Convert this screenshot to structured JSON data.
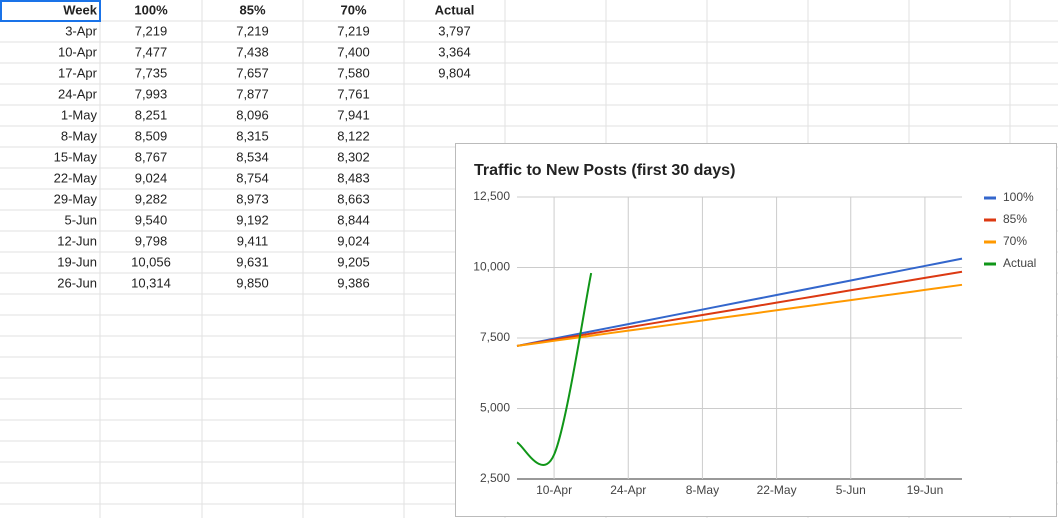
{
  "table": {
    "header": [
      "Week",
      "100%",
      "85%",
      "70%",
      "Actual"
    ],
    "rows": [
      [
        "3-Apr",
        "7,219",
        "7,219",
        "7,219",
        "3,797"
      ],
      [
        "10-Apr",
        "7,477",
        "7,438",
        "7,400",
        "3,364"
      ],
      [
        "17-Apr",
        "7,735",
        "7,657",
        "7,580",
        "9,804"
      ],
      [
        "24-Apr",
        "7,993",
        "7,877",
        "7,761"
      ],
      [
        "1-May",
        "8,251",
        "8,096",
        "7,941"
      ],
      [
        "8-May",
        "8,509",
        "8,315",
        "8,122"
      ],
      [
        "15-May",
        "8,767",
        "8,534",
        "8,302"
      ],
      [
        "22-May",
        "9,024",
        "8,754",
        "8,483"
      ],
      [
        "29-May",
        "9,282",
        "8,973",
        "8,663"
      ],
      [
        "5-Jun",
        "9,540",
        "9,192",
        "8,844"
      ],
      [
        "12-Jun",
        "9,798",
        "9,411",
        "9,024"
      ],
      [
        "19-Jun",
        "10,056",
        "9,631",
        "9,205"
      ],
      [
        "26-Jun",
        "10,314",
        "9,850",
        "9,386"
      ]
    ]
  },
  "chart_data": {
    "type": "line",
    "title": "Traffic to New Posts (first 30 days)",
    "categories": [
      null,
      "10-Apr",
      null,
      "24-Apr",
      null,
      "8-May",
      null,
      "22-May",
      null,
      "5-Jun",
      null,
      "19-Jun",
      null
    ],
    "series": [
      {
        "name": "100%",
        "color": "#3366cc",
        "values": [
          7219,
          7477,
          7735,
          7993,
          8251,
          8509,
          8767,
          9024,
          9282,
          9540,
          9798,
          10056,
          10314
        ]
      },
      {
        "name": "85%",
        "color": "#dc3912",
        "values": [
          7219,
          7438,
          7657,
          7877,
          8096,
          8315,
          8534,
          8754,
          8973,
          9192,
          9411,
          9631,
          9850
        ]
      },
      {
        "name": "70%",
        "color": "#ff9900",
        "values": [
          7219,
          7400,
          7580,
          7761,
          7941,
          8122,
          8302,
          8483,
          8663,
          8844,
          9024,
          9205,
          9386
        ]
      },
      {
        "name": "Actual",
        "color": "#109618",
        "values": [
          3797,
          3364,
          9804,
          null,
          null,
          null,
          null,
          null,
          null,
          null,
          null,
          null,
          null
        ]
      }
    ],
    "ylim": [
      2500,
      12500
    ],
    "yticks": [
      {
        "value": 2500,
        "label": "2,500"
      },
      {
        "value": 5000,
        "label": "5,000"
      },
      {
        "value": 7500,
        "label": "7,500"
      },
      {
        "value": 10000,
        "label": "10,000"
      },
      {
        "value": 12500,
        "label": "12,500"
      }
    ],
    "grid": true,
    "legend": "right"
  }
}
